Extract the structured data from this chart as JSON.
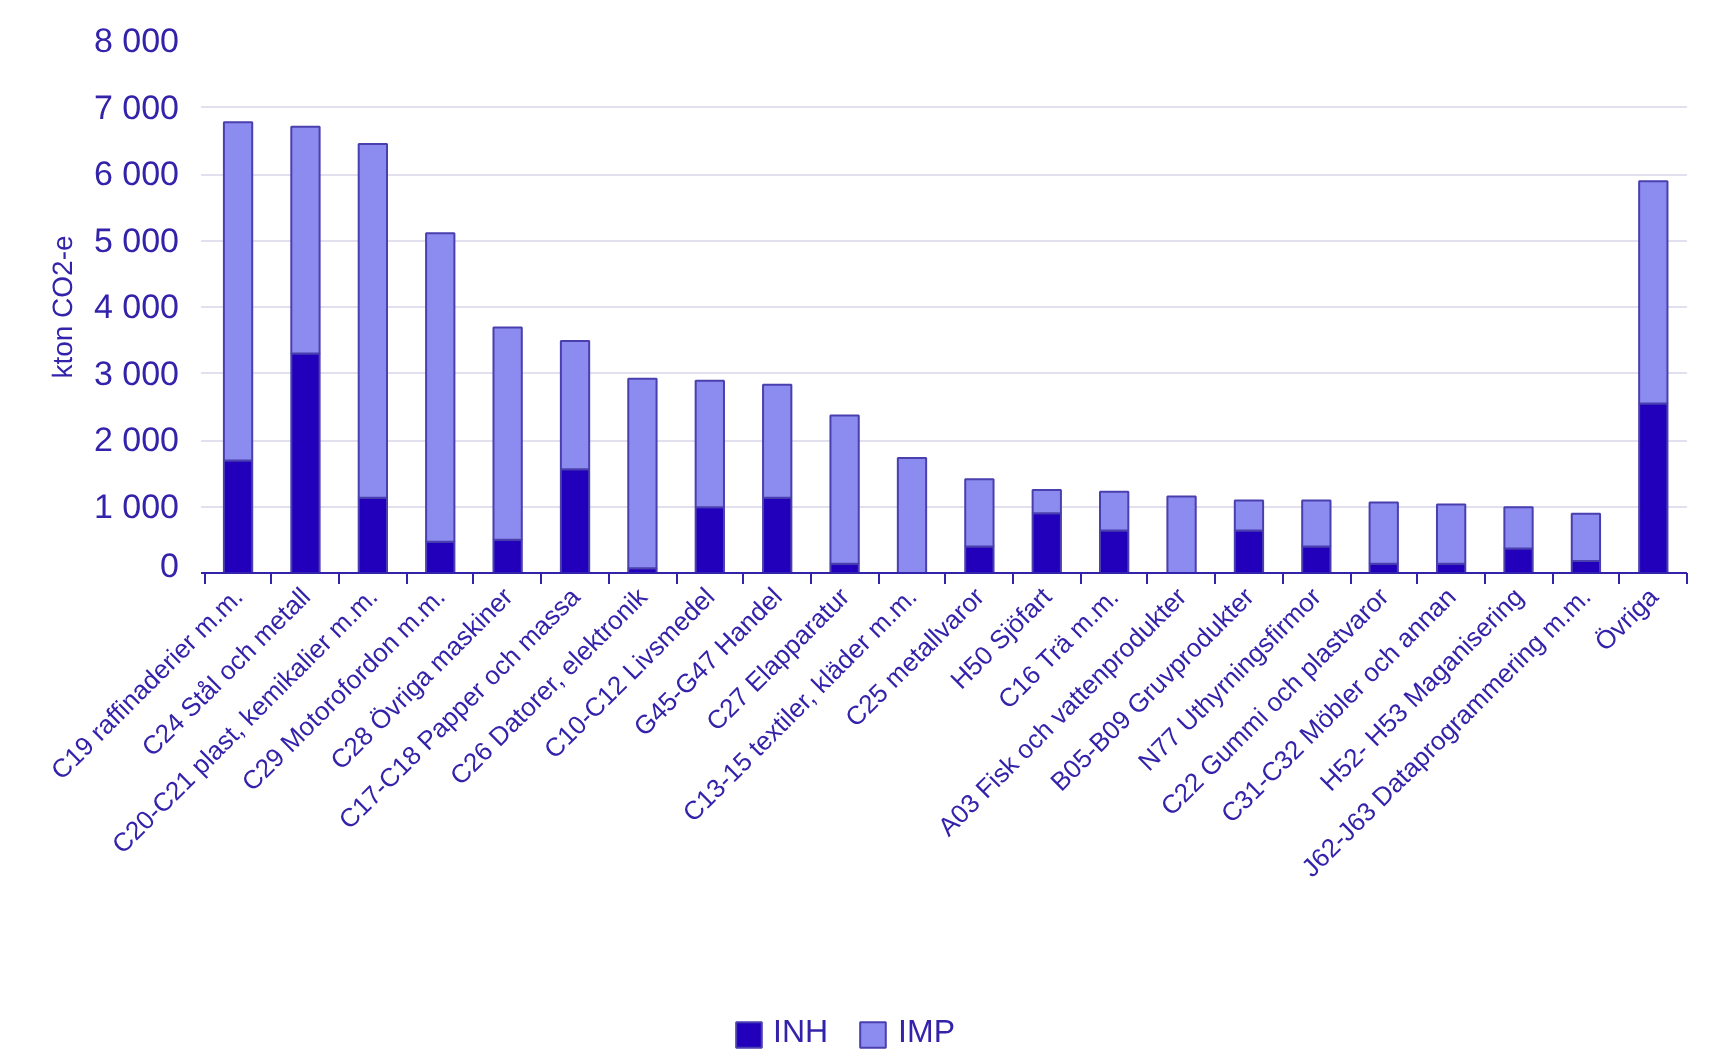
{
  "chart_data": {
    "type": "bar",
    "stacked": true,
    "ylabel": "kton CO2-e",
    "categories": [
      "C19 raffinaderier m.m.",
      "C24 Stål och metall",
      "C20-C21 plast, kemikalier m.m.",
      "C29 Motorofordon m.m.",
      "C28 Övriga maskiner",
      "C17-C18 Papper och massa",
      "C26 Datorer, elektronik",
      "C10-C12 Livsmedel",
      "G45-G47 Handel",
      "C27 Elapparatur",
      "C13-15 textiler, kläder m.m.",
      "C25 metallvaror",
      "H50 Sjöfart",
      "C16 Trä m.m.",
      "A03 Fisk och vattenprodukter",
      "B05-B09 Gruvprodukter",
      "N77 Uthyrningsfirmor",
      "C22 Gummi och plastvaror",
      "C31-C32 Möbler och annan",
      "H52- H53 Maganisering",
      "J62-J63 Dataprogrammering m.m.",
      "Övriga"
    ],
    "series": [
      {
        "name": "INH",
        "color": "#2200bb",
        "values": [
          1690,
          3300,
          1130,
          470,
          500,
          1560,
          70,
          990,
          1130,
          140,
          null,
          400,
          900,
          640,
          0,
          640,
          400,
          140,
          140,
          370,
          180,
          2550
        ]
      },
      {
        "name": "IMP",
        "color": "#8c8cf0",
        "values": [
          5090,
          3410,
          5320,
          4640,
          3190,
          1930,
          2850,
          1900,
          1700,
          2230,
          1730,
          1010,
          350,
          580,
          1150,
          450,
          690,
          920,
          890,
          620,
          710,
          3340
        ]
      }
    ],
    "ylim": [
      0,
      8000
    ],
    "yticks": [
      {
        "value": 0,
        "label": "0"
      },
      {
        "value": 1000,
        "label": "1 000"
      },
      {
        "value": 2000,
        "label": "2 000"
      },
      {
        "value": 3000,
        "label": "3 000"
      },
      {
        "value": 4000,
        "label": "4 000"
      },
      {
        "value": 5000,
        "label": "5 000"
      },
      {
        "value": 6000,
        "label": "6 000"
      },
      {
        "value": 7000,
        "label": "7 000"
      },
      {
        "value": 8000,
        "label": "8 000"
      }
    ],
    "grid": "y",
    "legend": "bottom"
  }
}
